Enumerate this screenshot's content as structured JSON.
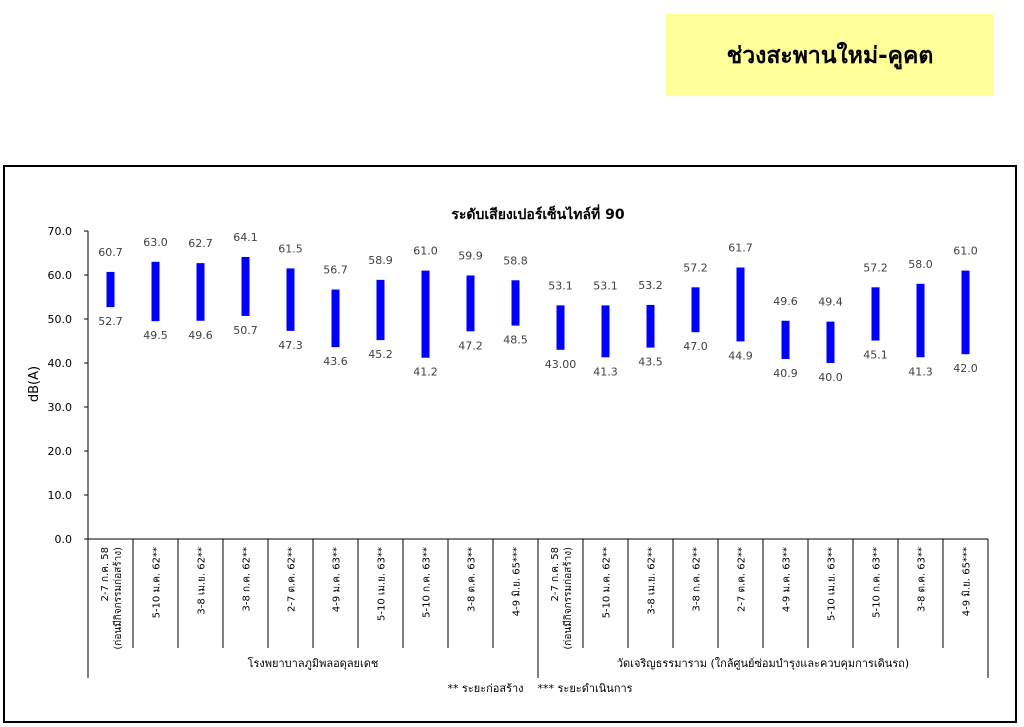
{
  "header": {
    "title": "ช่วงสะพานใหม่-คูคต"
  },
  "chart_data": {
    "type": "bar",
    "subtype": "range",
    "title": "ระดับเสียงเปอร์เซ็นไทล์ที่ 90",
    "ylabel": "dB(A)",
    "ylim": [
      0,
      70
    ],
    "yticks": [
      "0.0",
      "10.0",
      "20.0",
      "30.0",
      "40.0",
      "50.0",
      "60.0",
      "70.0"
    ],
    "grid": false,
    "bar_color": "#0000ff",
    "categories": [
      [
        "2-7 ก.ค. 58",
        "(ก่อนมีกิจกรรมก่อสร้าง)"
      ],
      [
        "5-10 ม.ค. 62**"
      ],
      [
        "3-8 เม.ย. 62**"
      ],
      [
        "3-8 ก.ค. 62**"
      ],
      [
        "2-7 ต.ค. 62**"
      ],
      [
        "4-9 ม.ค. 63**"
      ],
      [
        "5-10 เม.ย. 63**"
      ],
      [
        "5-10 ก.ค. 63**"
      ],
      [
        "3-8 ต.ค. 63**"
      ],
      [
        "4-9 มิ.ย. 65***"
      ],
      [
        "2-7 ก.ค. 58",
        "(ก่อนมีกิจกรรมก่อสร้าง)"
      ],
      [
        "5-10 ม.ค. 62**"
      ],
      [
        "3-8 เม.ย. 62**"
      ],
      [
        "3-8 ก.ค. 62**"
      ],
      [
        "2-7 ต.ค. 62**"
      ],
      [
        "4-9 ม.ค. 63**"
      ],
      [
        "5-10 เม.ย. 63**"
      ],
      [
        "5-10 ก.ค. 63**"
      ],
      [
        "3-8 ต.ค. 63**"
      ],
      [
        "4-9 มิ.ย. 65***"
      ]
    ],
    "high": [
      60.7,
      63.0,
      62.7,
      64.1,
      61.5,
      56.7,
      58.9,
      61.0,
      59.9,
      58.8,
      53.1,
      53.1,
      53.2,
      57.2,
      61.7,
      49.6,
      49.4,
      57.2,
      58.0,
      61.0
    ],
    "low": [
      52.7,
      49.5,
      49.6,
      50.7,
      47.3,
      43.6,
      45.2,
      41.2,
      47.2,
      48.5,
      43.0,
      41.3,
      43.5,
      47.0,
      44.9,
      40.9,
      40.0,
      45.1,
      41.3,
      42.0
    ],
    "high_labels": [
      "60.7",
      "63.0",
      "62.7",
      "64.1",
      "61.5",
      "56.7",
      "58.9",
      "61.0",
      "59.9",
      "58.8",
      "53.1",
      "53.1",
      "53.2",
      "57.2",
      "61.7",
      "49.6",
      "49.4",
      "57.2",
      "58.0",
      "61.0"
    ],
    "low_labels": [
      "52.7",
      "49.5",
      "49.6",
      "50.7",
      "47.3",
      "43.6",
      "45.2",
      "41.2",
      "47.2",
      "48.5",
      "43.00",
      "41.3",
      "43.5",
      "47.0",
      "44.9",
      "40.9",
      "40.0",
      "45.1",
      "41.3",
      "42.0"
    ],
    "groups": [
      {
        "name": "โรงพยาบาลภูมิพลอดุลยเดช",
        "count": 10
      },
      {
        "name": "วัดเจริญธรรมาราม (ใกล้ศูนย์ซ่อมบำรุงและควบคุมการเดินรถ)",
        "count": 10
      }
    ],
    "footnote": "** ระยะก่อสร้าง    *** ระยะดำเนินการ"
  }
}
